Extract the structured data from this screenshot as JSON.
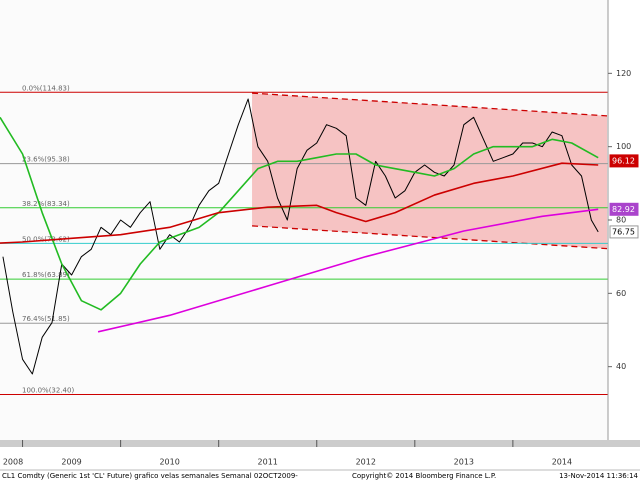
{
  "chart_data": {
    "type": "line",
    "caption": "CL1 Comdty (Generic 1st 'CL' Future) grafico velas semanales  Semanal 02OCT2009-",
    "source": "Copyright© 2014 Bloomberg Finance L.P.",
    "timestamp": "13-Nov-2014 11:36:14",
    "xlim": [
      2008.77,
      2014.97
    ],
    "xticks": [
      2008,
      2009,
      2010,
      2011,
      2012,
      2013,
      2014
    ],
    "ylim": [
      20,
      140
    ],
    "yticks": [
      40,
      60,
      80,
      100,
      120
    ],
    "series": [
      {
        "color": "#000000",
        "width": 1,
        "x": [
          2008.8,
          2008.9,
          2009.0,
          2009.1,
          2009.2,
          2009.3,
          2009.4,
          2009.5,
          2009.6,
          2009.7,
          2009.8,
          2009.9,
          2010.0,
          2010.1,
          2010.2,
          2010.3,
          2010.4,
          2010.5,
          2010.6,
          2010.7,
          2010.8,
          2010.9,
          2011.0,
          2011.1,
          2011.2,
          2011.3,
          2011.4,
          2011.5,
          2011.6,
          2011.7,
          2011.8,
          2011.9,
          2012.0,
          2012.1,
          2012.2,
          2012.3,
          2012.4,
          2012.5,
          2012.6,
          2012.7,
          2012.8,
          2012.9,
          2013.0,
          2013.1,
          2013.2,
          2013.3,
          2013.4,
          2013.5,
          2013.6,
          2013.7,
          2013.8,
          2013.9,
          2014.0,
          2014.1,
          2014.2,
          2014.3,
          2014.4,
          2014.5,
          2014.6,
          2014.7,
          2014.8,
          2014.87
        ],
        "values": [
          70,
          55,
          42,
          38,
          48,
          52,
          68,
          65,
          70,
          72,
          78,
          76,
          80,
          78,
          82,
          85,
          72,
          76,
          74,
          78,
          84,
          88,
          90,
          98,
          106,
          113,
          100,
          96,
          86,
          80,
          94,
          99,
          101,
          106,
          105,
          103,
          86,
          84,
          96,
          92,
          86,
          88,
          93,
          95,
          93,
          92,
          95,
          106,
          108,
          102,
          96,
          97,
          98,
          101,
          101,
          100,
          104,
          103,
          95,
          92,
          80,
          76.75
        ]
      },
      {
        "color": "#22bb22",
        "width": 1.6,
        "x": [
          2008.77,
          2009.0,
          2009.2,
          2009.4,
          2009.6,
          2009.8,
          2010.0,
          2010.2,
          2010.4,
          2010.6,
          2010.8,
          2011.0,
          2011.2,
          2011.4,
          2011.6,
          2011.8,
          2012.0,
          2012.2,
          2012.4,
          2012.6,
          2012.8,
          2013.0,
          2013.2,
          2013.4,
          2013.6,
          2013.8,
          2014.0,
          2014.2,
          2014.4,
          2014.6,
          2014.87
        ],
        "values": [
          108,
          98,
          82,
          68,
          58,
          55.5,
          60,
          68,
          74,
          76,
          78,
          82,
          88,
          94,
          96,
          96,
          97,
          98,
          98,
          95,
          94,
          93,
          92,
          94,
          98,
          100,
          100,
          100,
          102,
          101,
          97
        ]
      },
      {
        "color": "#cc0000",
        "width": 1.6,
        "x": [
          2008.77,
          2009.0,
          2009.5,
          2010.0,
          2010.5,
          2011.0,
          2011.5,
          2012.0,
          2012.2,
          2012.5,
          2012.8,
          2013.2,
          2013.6,
          2014.0,
          2014.5,
          2014.87
        ],
        "values": [
          73.7,
          74,
          75,
          76,
          78,
          82,
          83.5,
          84,
          82,
          79.6,
          82,
          86.8,
          90,
          92,
          95.5,
          95
        ]
      },
      {
        "color": "#dd00dd",
        "width": 1.6,
        "x": [
          2009.77,
          2010.5,
          2011.5,
          2012.5,
          2013.5,
          2014.3,
          2014.87
        ],
        "values": [
          49.5,
          54,
          62,
          70,
          77,
          81,
          82.92
        ]
      }
    ],
    "channel": {
      "color": "#f4b8b8",
      "line_color": "#cc0000",
      "x": [
        2011.34,
        2014.96
      ],
      "upper": [
        114.6,
        108.4
      ],
      "lower": [
        78.4,
        72.2
      ]
    },
    "levels": [
      {
        "label": "0.0%(114.83)",
        "value": 114.83,
        "color": "#cc0000"
      },
      {
        "label": "23.6%(95.38)",
        "value": 95.38,
        "color": "#999999"
      },
      {
        "label": "38.2%(83.34)",
        "value": 83.34,
        "color": "#33cc33"
      },
      {
        "label": "50.0%(73.62)",
        "value": 73.62,
        "color": "#33cccc"
      },
      {
        "label": "61.8%(63.89)",
        "value": 63.89,
        "color": "#33cc33"
      },
      {
        "label": "76.4%(51.85)",
        "value": 51.85,
        "color": "#999999"
      },
      {
        "label": "100.0%(32.40)",
        "value": 32.4,
        "color": "#cc0000"
      }
    ],
    "last_values": [
      {
        "value": 96.12,
        "color": "#cc0000",
        "text_color": "#ffffff"
      },
      {
        "value": 82.92,
        "color": "#aa44cc",
        "text_color": "#ffffff"
      },
      {
        "value": 76.75,
        "color": "#ffffff",
        "text_color": "#000000"
      }
    ]
  }
}
